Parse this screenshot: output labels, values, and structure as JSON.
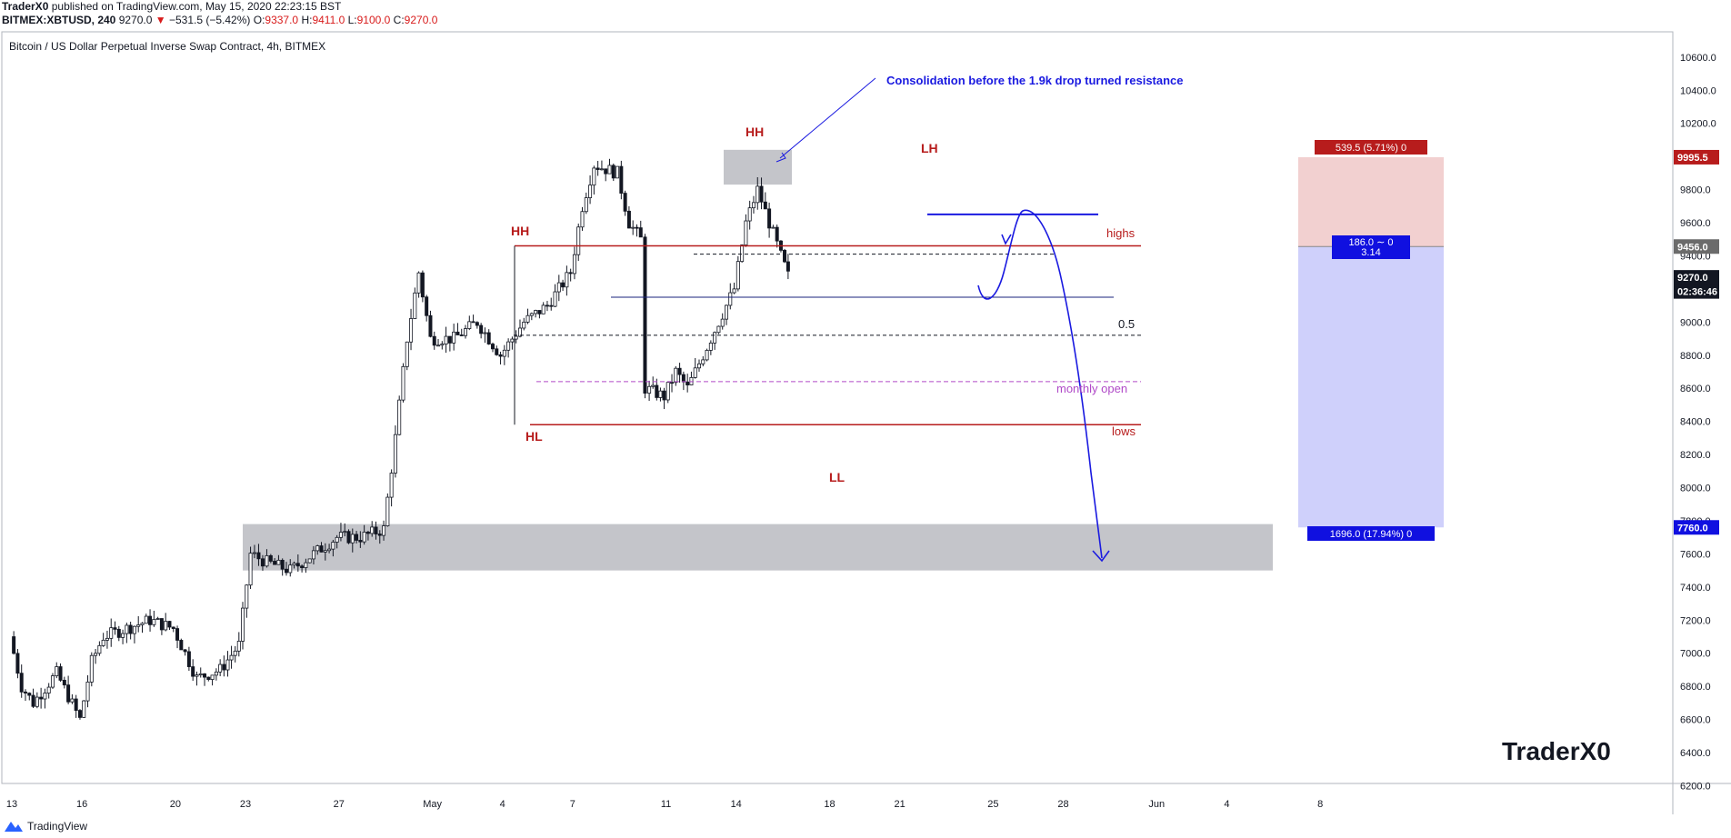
{
  "header": {
    "publisher": "TraderX0",
    "published_text": "published on TradingView.com, May 15, 2020 22:23:15 BST",
    "symbol": "BITMEX:XBTUSD, 240",
    "last": "9270.0",
    "change": "−531.5 (−5.42%)",
    "o_label": "O:",
    "o_value": "9337.0",
    "h_label": "H:",
    "h_value": "9411.0",
    "l_label": "L:",
    "l_value": "9100.0",
    "c_label": "C:",
    "c_value": "9270.0"
  },
  "chart_title": "Bitcoin / US Dollar Perpetual Inverse Swap Contract, 4h, BITMEX",
  "footer": {
    "brand": "TradingView"
  },
  "watermark": "TraderX0",
  "chart_data": {
    "type": "candlestick",
    "y_ticks": [
      6200,
      6400,
      6600,
      6800,
      7000,
      7200,
      7400,
      7600,
      7800,
      8000,
      8200,
      8400,
      8600,
      8800,
      9000,
      9200,
      9400,
      9600,
      9800,
      10000,
      10200,
      10400,
      10600
    ],
    "y_tick_labels": [
      "6200.0",
      "6400.0",
      "6600.0",
      "6800.0",
      "7000.0",
      "7200.0",
      "7400.0",
      "7600.0",
      "7800.0",
      "8000.0",
      "8200.0",
      "8400.0",
      "8600.0",
      "8800.0",
      "9000.0",
      "9200.0",
      "9400.0",
      "9600.0",
      "9800.0",
      "10000.0",
      "10200.0",
      "10400.0",
      "10600.0"
    ],
    "ylim": [
      6200,
      10600
    ],
    "x_labels": [
      {
        "d": 13,
        "label": "13"
      },
      {
        "d": 16,
        "label": "16"
      },
      {
        "d": 20,
        "label": "20"
      },
      {
        "d": 23,
        "label": "23"
      },
      {
        "d": 27,
        "label": "27"
      },
      {
        "d": 31,
        "label": "May"
      },
      {
        "d": 34,
        "label": "4"
      },
      {
        "d": 37,
        "label": "7"
      },
      {
        "d": 41,
        "label": "11"
      },
      {
        "d": 44,
        "label": "14"
      },
      {
        "d": 48,
        "label": "18"
      },
      {
        "d": 51,
        "label": "21"
      },
      {
        "d": 55,
        "label": "25"
      },
      {
        "d": 58,
        "label": "28"
      },
      {
        "d": 62,
        "label": "Jun"
      },
      {
        "d": 65,
        "label": "4"
      },
      {
        "d": 69,
        "label": "8"
      }
    ],
    "price_badges": [
      {
        "value": 9995.5,
        "label": "9995.5",
        "bg": "#b71c1c",
        "fg": "#ffffff"
      },
      {
        "value": 9456.0,
        "label": "9456.0",
        "bg": "#6b6b6b",
        "fg": "#ffffff"
      },
      {
        "value": 9270.0,
        "label": "9270.0",
        "bg": "#131722",
        "fg": "#ffffff"
      },
      {
        "value": 9185,
        "label": "02:36:46",
        "bg": "#131722",
        "fg": "#ffffff"
      },
      {
        "value": 7760.0,
        "label": "7760.0",
        "bg": "#1010e0",
        "fg": "#ffffff"
      }
    ],
    "annotations": {
      "consolidation_note": "Consolidation before the 1.9k drop turned resistance",
      "hh_left": "HH",
      "hh_top": "HH",
      "lh": "LH",
      "hl": "HL",
      "ll": "LL",
      "highs": "highs",
      "lows": "lows",
      "fib": "0.5",
      "monthly_open": "monthly open"
    },
    "levels": {
      "highs": 9460,
      "lows": 8380,
      "fib_half": 8920,
      "monthly_open": 8640,
      "dashed_top": 9410,
      "mid_line": 9150,
      "demand_zone": [
        7500,
        7780
      ],
      "consolidation_box": [
        9830,
        10040
      ]
    },
    "position": {
      "entry": 9456.0,
      "stop": 9995.5,
      "target": 7760.0,
      "stop_label": "539.5 (5.71%) 0",
      "entry_label_1": "186.0 ∼ 0",
      "entry_label_2": "3.14",
      "target_label": "1696.0 (17.94%) 0",
      "stop_color": "#f2d0d0",
      "target_color": "#cfd0fb"
    },
    "colors": {
      "up": "#ffffff",
      "down": "#131722",
      "resistance": "#b71c1c",
      "projection": "#1a1ae0",
      "monthly_open": "#b04ac8",
      "zone": "#c4c5ca"
    }
  }
}
